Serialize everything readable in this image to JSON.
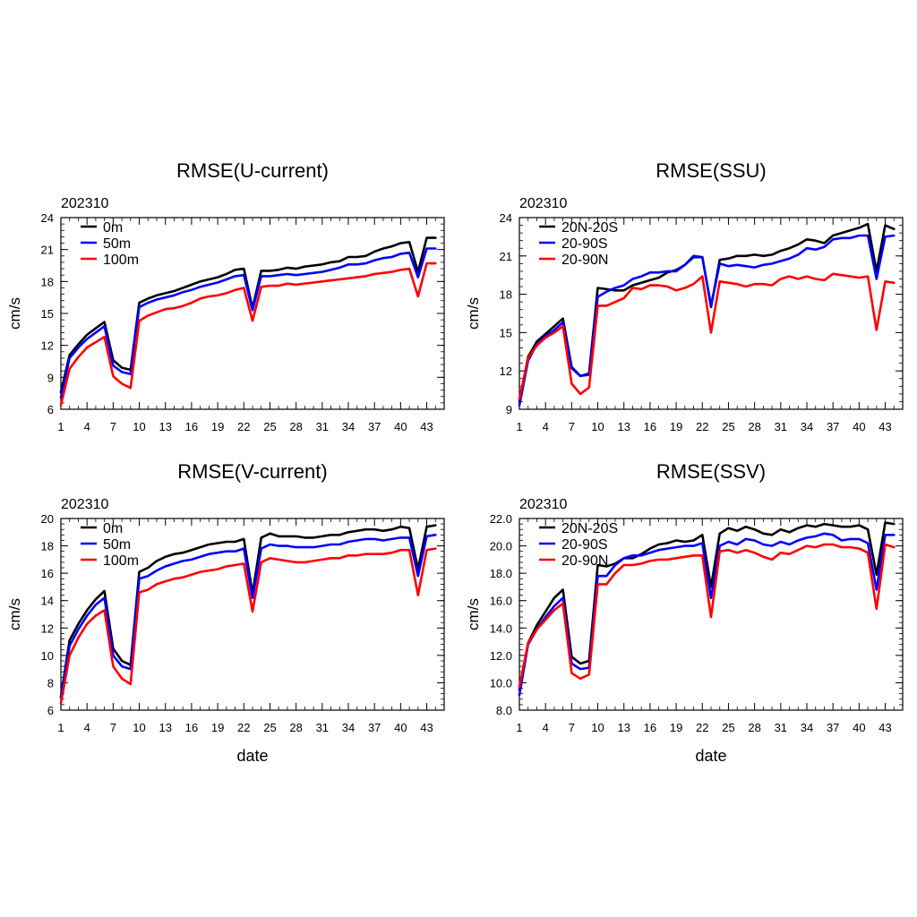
{
  "chart_data": [
    {
      "type": "line",
      "title": "RMSE(U-current)",
      "subtitle": "202310",
      "xlabel": "",
      "ylabel": "cm/s",
      "xlim": [
        1,
        45
      ],
      "ylim": [
        6,
        24
      ],
      "xticks": [
        1,
        4,
        7,
        10,
        13,
        16,
        19,
        22,
        25,
        28,
        31,
        34,
        37,
        40,
        43
      ],
      "yticks": [
        6,
        9,
        12,
        15,
        18,
        21,
        24
      ],
      "ytick_labels": [
        "6",
        "9",
        "12",
        "15",
        "18",
        "21",
        "24"
      ],
      "grid": false,
      "legend_position": "top-left",
      "series": [
        {
          "name": "0m",
          "color": "#000000",
          "values": [
            7.6,
            11.1,
            12.1,
            13.0,
            13.6,
            14.2,
            10.6,
            9.9,
            9.7,
            16.0,
            16.4,
            16.7,
            16.9,
            17.1,
            17.4,
            17.7,
            18.0,
            18.2,
            18.4,
            18.7,
            19.1,
            19.2,
            15.5,
            19.0,
            19.0,
            19.1,
            19.3,
            19.2,
            19.4,
            19.5,
            19.6,
            19.8,
            19.9,
            20.3,
            20.3,
            20.4,
            20.8,
            21.1,
            21.3,
            21.6,
            21.7,
            18.9,
            22.1,
            22.1
          ]
        },
        {
          "name": "50m",
          "color": "#0000ff",
          "values": [
            7.1,
            10.8,
            11.8,
            12.6,
            13.2,
            13.8,
            10.1,
            9.5,
            9.3,
            15.6,
            16.0,
            16.3,
            16.5,
            16.7,
            17.0,
            17.2,
            17.5,
            17.7,
            17.9,
            18.2,
            18.5,
            18.6,
            15.3,
            18.5,
            18.5,
            18.6,
            18.7,
            18.6,
            18.7,
            18.8,
            18.9,
            19.1,
            19.3,
            19.6,
            19.6,
            19.7,
            20.0,
            20.2,
            20.3,
            20.6,
            20.7,
            18.4,
            21.1,
            21.1
          ]
        },
        {
          "name": "100m",
          "color": "#ff0000",
          "values": [
            6.4,
            9.8,
            10.9,
            11.8,
            12.3,
            12.8,
            9.1,
            8.4,
            8.0,
            14.3,
            14.8,
            15.1,
            15.4,
            15.5,
            15.7,
            16.0,
            16.4,
            16.6,
            16.7,
            16.9,
            17.2,
            17.4,
            14.3,
            17.5,
            17.6,
            17.6,
            17.8,
            17.7,
            17.8,
            17.9,
            18.0,
            18.1,
            18.2,
            18.3,
            18.4,
            18.5,
            18.7,
            18.8,
            18.9,
            19.1,
            19.2,
            16.6,
            19.7,
            19.7
          ]
        }
      ]
    },
    {
      "type": "line",
      "title": "RMSE(SSU)",
      "subtitle": "202310",
      "xlabel": "",
      "ylabel": "cm/s",
      "xlim": [
        1,
        45
      ],
      "ylim": [
        9,
        24
      ],
      "xticks": [
        1,
        4,
        7,
        10,
        13,
        16,
        19,
        22,
        25,
        28,
        31,
        34,
        37,
        40,
        43
      ],
      "yticks": [
        9,
        12,
        15,
        18,
        21,
        24
      ],
      "ytick_labels": [
        "9",
        "12",
        "15",
        "18",
        "21",
        "24"
      ],
      "grid": false,
      "legend_position": "top-left",
      "series": [
        {
          "name": "20N-20S",
          "color": "#000000",
          "values": [
            9.6,
            13.1,
            14.3,
            14.9,
            15.5,
            16.1,
            12.3,
            11.6,
            11.8,
            18.5,
            18.4,
            18.3,
            18.3,
            18.7,
            18.9,
            19.1,
            19.3,
            19.7,
            19.9,
            20.3,
            20.9,
            20.9,
            17.0,
            20.7,
            20.8,
            21.0,
            21.0,
            21.1,
            21.0,
            21.1,
            21.4,
            21.6,
            21.9,
            22.3,
            22.2,
            22.0,
            22.6,
            22.8,
            23.0,
            23.2,
            23.5,
            19.8,
            23.4,
            23.1
          ]
        },
        {
          "name": "20-90S",
          "color": "#0000ff",
          "values": [
            9.3,
            12.8,
            14.1,
            14.7,
            15.2,
            15.8,
            12.2,
            11.6,
            11.7,
            17.8,
            18.2,
            18.5,
            18.7,
            19.2,
            19.4,
            19.7,
            19.7,
            19.8,
            19.8,
            20.3,
            21.0,
            20.9,
            17.1,
            20.4,
            20.2,
            20.3,
            20.2,
            20.1,
            20.3,
            20.4,
            20.6,
            20.8,
            21.1,
            21.6,
            21.5,
            21.7,
            22.3,
            22.4,
            22.4,
            22.6,
            22.6,
            19.2,
            22.5,
            22.6
          ]
        },
        {
          "name": "20-90N",
          "color": "#ff0000",
          "values": [
            9.8,
            13.0,
            14.0,
            14.6,
            15.0,
            15.5,
            11.0,
            10.2,
            10.7,
            17.1,
            17.1,
            17.4,
            17.7,
            18.5,
            18.4,
            18.7,
            18.7,
            18.6,
            18.3,
            18.5,
            18.8,
            19.4,
            15.0,
            19.0,
            18.9,
            18.8,
            18.6,
            18.8,
            18.8,
            18.7,
            19.2,
            19.4,
            19.2,
            19.4,
            19.2,
            19.1,
            19.6,
            19.5,
            19.4,
            19.3,
            19.4,
            15.2,
            19.0,
            18.9
          ]
        }
      ]
    },
    {
      "type": "line",
      "title": "RMSE(V-current)",
      "subtitle": "202310",
      "xlabel": "date",
      "ylabel": "cm/s",
      "xlim": [
        1,
        45
      ],
      "ylim": [
        6,
        20
      ],
      "xticks": [
        1,
        4,
        7,
        10,
        13,
        16,
        19,
        22,
        25,
        28,
        31,
        34,
        37,
        40,
        43
      ],
      "yticks": [
        6,
        8,
        10,
        12,
        14,
        16,
        18,
        20
      ],
      "ytick_labels": [
        "6",
        "8",
        "10",
        "12",
        "14",
        "16",
        "18",
        "20"
      ],
      "grid": false,
      "legend_position": "top-left",
      "series": [
        {
          "name": "0m",
          "color": "#000000",
          "values": [
            7.0,
            11.1,
            12.3,
            13.3,
            14.1,
            14.7,
            10.5,
            9.6,
            9.3,
            16.1,
            16.4,
            16.9,
            17.2,
            17.4,
            17.5,
            17.7,
            17.9,
            18.1,
            18.2,
            18.3,
            18.3,
            18.5,
            14.5,
            18.6,
            18.9,
            18.7,
            18.7,
            18.7,
            18.6,
            18.6,
            18.7,
            18.8,
            18.8,
            19.0,
            19.1,
            19.2,
            19.2,
            19.1,
            19.2,
            19.4,
            19.3,
            16.3,
            19.4,
            19.5
          ]
        },
        {
          "name": "50m",
          "color": "#0000ff",
          "values": [
            6.9,
            10.7,
            11.9,
            12.9,
            13.7,
            14.2,
            10.0,
            9.2,
            9.0,
            15.6,
            15.8,
            16.2,
            16.5,
            16.7,
            16.9,
            17.0,
            17.2,
            17.4,
            17.5,
            17.6,
            17.6,
            17.8,
            14.2,
            17.8,
            18.1,
            18.0,
            18.0,
            17.9,
            17.9,
            17.9,
            18.0,
            18.1,
            18.1,
            18.3,
            18.4,
            18.5,
            18.5,
            18.4,
            18.5,
            18.6,
            18.6,
            15.8,
            18.7,
            18.8
          ]
        },
        {
          "name": "100m",
          "color": "#ff0000",
          "values": [
            6.5,
            10.0,
            11.3,
            12.3,
            12.9,
            13.3,
            9.2,
            8.3,
            7.9,
            14.6,
            14.8,
            15.2,
            15.4,
            15.6,
            15.7,
            15.9,
            16.1,
            16.2,
            16.3,
            16.5,
            16.6,
            16.7,
            13.2,
            16.8,
            17.1,
            17.0,
            16.9,
            16.8,
            16.8,
            16.9,
            17.0,
            17.1,
            17.1,
            17.3,
            17.3,
            17.4,
            17.4,
            17.4,
            17.5,
            17.7,
            17.7,
            14.4,
            17.7,
            17.8
          ]
        }
      ]
    },
    {
      "type": "line",
      "title": "RMSE(SSV)",
      "subtitle": "202310",
      "xlabel": "date",
      "ylabel": "cm/s",
      "xlim": [
        1,
        45
      ],
      "ylim": [
        8,
        22
      ],
      "xticks": [
        1,
        4,
        7,
        10,
        13,
        16,
        19,
        22,
        25,
        28,
        31,
        34,
        37,
        40,
        43
      ],
      "yticks": [
        8,
        10,
        12,
        14,
        16,
        18,
        20,
        22
      ],
      "ytick_labels": [
        "8.0",
        "10.0",
        "12.0",
        "14.0",
        "16.0",
        "18.0",
        "20.0",
        "22.0"
      ],
      "grid": false,
      "legend_position": "top-left",
      "series": [
        {
          "name": "20N-20S",
          "color": "#000000",
          "values": [
            9.5,
            12.9,
            14.2,
            15.2,
            16.2,
            16.8,
            11.9,
            11.4,
            11.6,
            18.6,
            18.5,
            18.7,
            19.1,
            19.1,
            19.4,
            19.8,
            20.1,
            20.2,
            20.4,
            20.3,
            20.4,
            20.8,
            17.0,
            20.9,
            21.3,
            21.1,
            21.4,
            21.2,
            20.9,
            20.8,
            21.2,
            21.0,
            21.3,
            21.5,
            21.4,
            21.6,
            21.5,
            21.4,
            21.4,
            21.5,
            21.2,
            17.9,
            21.7,
            21.6
          ]
        },
        {
          "name": "20-90S",
          "color": "#0000ff",
          "values": [
            9.1,
            12.8,
            13.9,
            14.8,
            15.6,
            16.2,
            11.4,
            11.0,
            11.1,
            17.8,
            17.8,
            18.6,
            19.1,
            19.3,
            19.3,
            19.5,
            19.7,
            19.8,
            19.9,
            20.0,
            20.0,
            20.2,
            16.2,
            20.0,
            20.3,
            20.1,
            20.5,
            20.4,
            20.1,
            20.0,
            20.3,
            20.1,
            20.4,
            20.6,
            20.7,
            20.9,
            20.8,
            20.4,
            20.5,
            20.5,
            20.2,
            16.8,
            20.8,
            20.8
          ]
        },
        {
          "name": "20-90N",
          "color": "#ff0000",
          "values": [
            9.7,
            12.9,
            13.9,
            14.6,
            15.3,
            15.8,
            10.7,
            10.3,
            10.6,
            17.2,
            17.2,
            18.0,
            18.6,
            18.6,
            18.7,
            18.9,
            19.0,
            19.0,
            19.1,
            19.2,
            19.3,
            19.3,
            14.8,
            19.6,
            19.7,
            19.5,
            19.7,
            19.5,
            19.2,
            19.0,
            19.5,
            19.4,
            19.7,
            20.0,
            19.9,
            20.1,
            20.1,
            19.9,
            19.9,
            19.8,
            19.5,
            15.4,
            20.1,
            19.9
          ]
        }
      ]
    }
  ]
}
